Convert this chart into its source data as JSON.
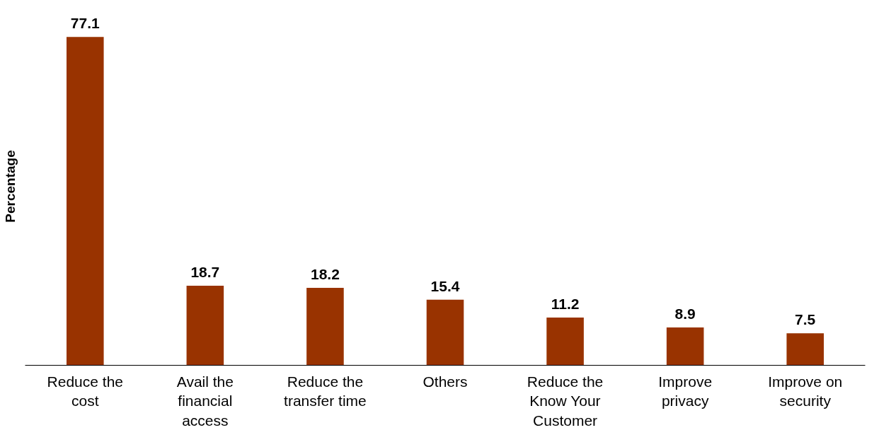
{
  "chart_data": {
    "type": "bar",
    "ylabel": "Percentage",
    "categories": [
      "Reduce the cost",
      "Avail the financial access",
      "Reduce the transfer time",
      "Others",
      "Reduce the Know Your Customer",
      "Improve privacy",
      "Improve on security"
    ],
    "values": [
      77.1,
      18.7,
      18.2,
      15.4,
      11.2,
      8.9,
      7.5
    ],
    "color": "#993300",
    "data_labels": true,
    "tick_labels": "x",
    "grid": false
  }
}
